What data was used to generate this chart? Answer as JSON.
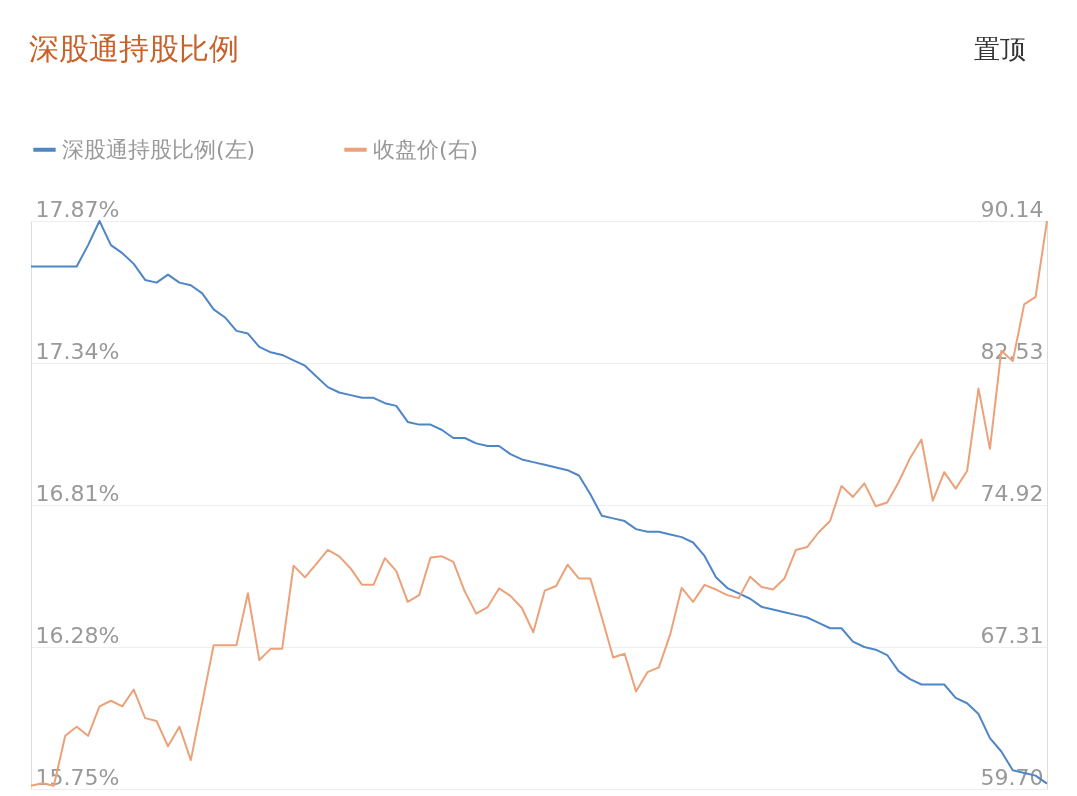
{
  "chart_data": {
    "type": "line",
    "title": "深股通持股比例",
    "annotations": [
      "置顶"
    ],
    "legend": "top left",
    "grid": "y",
    "line_style": "solid",
    "categories": [
      null,
      null,
      null,
      null,
      null,
      null,
      null,
      null,
      null,
      null,
      null,
      null,
      null,
      null,
      null,
      null,
      null,
      null,
      null,
      null,
      null,
      null,
      null,
      null,
      null,
      null,
      null,
      null,
      null,
      null,
      null,
      null,
      null,
      null,
      null,
      null,
      null,
      null,
      null,
      null,
      null,
      null,
      null,
      null,
      null,
      null,
      null,
      null,
      null,
      null,
      null,
      null,
      null,
      null,
      null,
      null,
      null,
      null,
      null,
      null,
      null,
      null,
      null,
      null,
      null,
      null,
      null,
      null,
      null,
      null,
      null,
      null,
      null,
      null,
      null,
      null,
      null,
      null,
      null,
      null,
      null,
      null,
      null,
      null,
      null,
      null,
      null,
      null,
      null,
      null
    ],
    "ylim": [
      15.75,
      17.87
    ],
    "yticks": [
      {
        "value": 15.75,
        "label": "15.75%"
      },
      {
        "value": 16.28,
        "label": "16.28%"
      },
      {
        "value": 16.81,
        "label": "16.81%"
      },
      {
        "value": 17.34,
        "label": "17.34%"
      },
      {
        "value": 17.87,
        "label": "17.87%"
      }
    ],
    "y2lim": [
      59.7,
      90.14
    ],
    "y2ticks": [
      {
        "value": 59.7,
        "label": "59.70"
      },
      67.31,
      74.92,
      82.53,
      90.14
    ],
    "series": [
      {
        "name": "深股通持股比例(左)",
        "color": "#4f86c6",
        "values": [
          17.7,
          17.7,
          17.7,
          17.7,
          17.7,
          17.78,
          17.87,
          17.78,
          17.75,
          17.71,
          17.65,
          17.64,
          17.67,
          17.64,
          17.63,
          17.6,
          17.54,
          17.51,
          17.46,
          17.45,
          17.4,
          17.38,
          17.37,
          17.35,
          17.33,
          17.29,
          17.25,
          17.23,
          17.22,
          17.21,
          17.21,
          17.19,
          17.18,
          17.12,
          17.11,
          17.11,
          17.09,
          17.06,
          17.06,
          17.04,
          17.03,
          17.03,
          17.0,
          16.98,
          16.97,
          16.96,
          16.95,
          16.94,
          16.92,
          16.85,
          16.77,
          16.76,
          16.75,
          16.72,
          16.71,
          16.71,
          16.7,
          16.69,
          16.67,
          16.62,
          16.54,
          16.5,
          16.48,
          16.46,
          16.43,
          16.42,
          16.41,
          16.4,
          16.39,
          16.37,
          16.35,
          16.35,
          16.3,
          16.28,
          16.27,
          16.25,
          16.19,
          16.16,
          16.14,
          16.14,
          16.14,
          16.09,
          16.07,
          16.03,
          15.94,
          15.89,
          15.82,
          15.81,
          15.8,
          15.77
        ]
      },
      {
        "name": "收盘价(右)",
        "color": "#eba27a",
        "axis": "y2",
        "values": [
          59.87,
          60.01,
          59.87,
          62.55,
          63.04,
          62.55,
          64.13,
          64.43,
          64.13,
          65.03,
          63.5,
          63.34,
          61.99,
          63.04,
          61.25,
          64.33,
          67.41,
          67.41,
          67.41,
          70.19,
          66.61,
          67.21,
          67.21,
          71.67,
          71.04,
          71.77,
          72.51,
          72.17,
          71.52,
          70.64,
          70.64,
          72.07,
          71.38,
          69.73,
          70.09,
          72.11,
          72.17,
          71.87,
          70.28,
          69.1,
          69.45,
          70.45,
          70.05,
          69.4,
          68.1,
          70.33,
          70.58,
          71.72,
          70.98,
          70.98,
          68.9,
          66.75,
          66.95,
          64.93,
          65.96,
          66.22,
          68.0,
          70.48,
          69.73,
          70.64,
          70.39,
          70.09,
          69.93,
          71.08,
          70.53,
          70.39,
          70.98,
          72.51,
          72.67,
          73.46,
          74.06,
          75.94,
          75.35,
          76.08,
          74.85,
          75.05,
          76.14,
          77.43,
          78.43,
          75.15,
          76.68,
          75.8,
          76.74,
          81.16,
          77.93,
          83.19,
          82.63,
          85.67,
          86.07,
          90.14
        ]
      }
    ]
  }
}
